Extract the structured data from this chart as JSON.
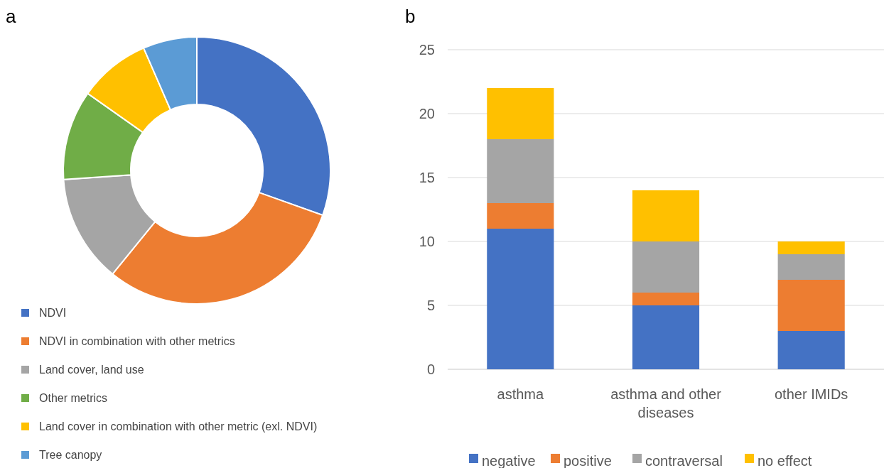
{
  "chart_data": [
    {
      "type": "donut",
      "title": "a",
      "categories": [
        "NDVI",
        "NDVI in combination with other metrics",
        "Land cover, land use",
        "Other metrics",
        "Land cover in combination with other metric (exl. NDVI)",
        "Tree canopy"
      ],
      "values": [
        30.44,
        30.43,
        13.04,
        10.87,
        8.7,
        6.52
      ],
      "colors": [
        "#4472c4",
        "#ed7d31",
        "#a5a5a5",
        "#70ad47",
        "#ffc000",
        "#5b9bd5"
      ],
      "legend": "bottom"
    },
    {
      "type": "bar",
      "title": "b",
      "stacked": true,
      "categories": [
        "asthma",
        "asthma and other diseases",
        "other IMIDs"
      ],
      "series": [
        {
          "name": "negative",
          "color": "#4472c4",
          "values": [
            11,
            5,
            3
          ]
        },
        {
          "name": "positive",
          "color": "#ed7d31",
          "values": [
            2,
            1,
            4
          ]
        },
        {
          "name": "contraversal",
          "color": "#a5a5a5",
          "values": [
            5,
            4,
            2
          ]
        },
        {
          "name": "no effect",
          "color": "#ffc000",
          "values": [
            4,
            4,
            1
          ]
        }
      ],
      "ylim": [
        0,
        25
      ],
      "yticks": [
        0,
        5,
        10,
        15,
        20,
        25
      ],
      "grid": "y",
      "legend": "bottom"
    }
  ]
}
